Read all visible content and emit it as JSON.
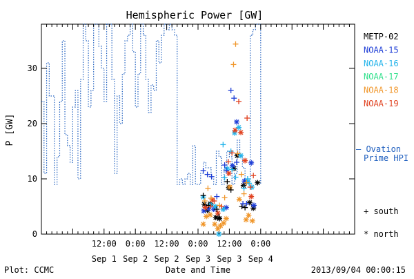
{
  "title": "Hemispheric Power [GW]",
  "footer": {
    "left": "Plot: CCMC",
    "right": "2013/09/04 00:00:15"
  },
  "legend": {
    "satellites": [
      {
        "name": "METP-02",
        "color": "#000000"
      },
      {
        "name": "NOAA-15",
        "color": "#1c3cd6"
      },
      {
        "name": "NOAA-16",
        "color": "#22b3ea"
      },
      {
        "name": "NOAA-17",
        "color": "#2ee08a"
      },
      {
        "name": "NOAA-18",
        "color": "#f0962a"
      },
      {
        "name": "NOAA-19",
        "color": "#e0401e"
      }
    ],
    "ovation_label_1": "— Ovation",
    "ovation_label_2": "Prime HPI",
    "ovation_color": "#1f5fbf",
    "south_label": "+ south",
    "north_label": "* north"
  },
  "chart_data": {
    "type": "scatter",
    "title": "Hemispheric Power [GW]",
    "xlabel": "Date and Time",
    "ylabel": "P [GW]",
    "xlim_hours": [
      0,
      60
    ],
    "ylim": [
      0,
      38
    ],
    "x_ticks": [
      {
        "hour": 12,
        "time": "12:00",
        "date": "Sep 1"
      },
      {
        "hour": 18,
        "time": "0:00",
        "date": "Sep 2"
      },
      {
        "hour": 24,
        "time": "12:00",
        "date": "Sep 2"
      },
      {
        "hour": 30,
        "time": "0:00",
        "date": "Sep 3"
      },
      {
        "hour": 36,
        "time": "12:00",
        "date": "Sep 3"
      },
      {
        "hour": 42,
        "time": "0:00",
        "date": "Sep 4"
      }
    ],
    "y_ticks": [
      0,
      10,
      20,
      30
    ],
    "ovation_hpi": {
      "name": "Ovation Prime HPI",
      "x": [
        0,
        0.5,
        1,
        1.5,
        2,
        2.5,
        3,
        3.5,
        4,
        4.5,
        5,
        5.5,
        6,
        6.5,
        7,
        7.5,
        8,
        8.5,
        9,
        9.5,
        10,
        10.5,
        11,
        11.5,
        12,
        12.5,
        13,
        13.5,
        14,
        14.5,
        15,
        15.5,
        16,
        16.5,
        17,
        17.5,
        18,
        18.5,
        19,
        19.5,
        20,
        20.5,
        21,
        21.5,
        22,
        22.5,
        23,
        23.5,
        24,
        24.5,
        25,
        25.5,
        26,
        26.5,
        27,
        27.5,
        28,
        28.5,
        29,
        29.5,
        30,
        30.5,
        31,
        31.5,
        32,
        32.5,
        33,
        33.5,
        34,
        34.5,
        35,
        35.5,
        36,
        36.5,
        37,
        37.5,
        38,
        38.5,
        39,
        39.5,
        40,
        40.5,
        41,
        41.5,
        42
      ],
      "y": [
        24,
        11,
        31,
        25,
        25,
        9,
        14,
        24,
        35,
        18,
        16,
        13,
        23,
        26,
        10,
        28,
        38,
        35,
        23,
        26,
        38,
        38,
        34,
        30,
        24,
        38,
        38,
        28,
        11,
        25,
        20,
        29,
        35,
        36,
        38,
        33,
        23,
        29,
        38,
        36,
        28,
        22,
        27,
        26,
        35,
        31,
        36,
        38,
        37,
        38,
        37,
        36,
        9,
        10,
        9,
        10,
        11,
        9,
        16,
        9,
        9,
        11,
        13,
        12,
        12,
        10,
        9,
        15,
        14,
        9,
        12,
        15,
        14,
        9,
        11,
        17,
        14,
        12,
        9,
        10,
        36,
        37,
        38,
        38,
        9
      ]
    },
    "south": [
      {
        "sat": "METP-02",
        "x": 31.0,
        "y": 7.0
      },
      {
        "sat": "METP-02",
        "x": 32.0,
        "y": 5.2
      },
      {
        "sat": "METP-02",
        "x": 33.6,
        "y": 4.5
      },
      {
        "sat": "METP-02",
        "x": 34.0,
        "y": 3.1
      },
      {
        "sat": "METP-02",
        "x": 35.6,
        "y": 9.5
      },
      {
        "sat": "METP-02",
        "x": 36.3,
        "y": 8.0
      },
      {
        "sat": "METP-02",
        "x": 38.4,
        "y": 5.0
      },
      {
        "sat": "METP-02",
        "x": 39.0,
        "y": 4.8
      },
      {
        "sat": "NOAA-15",
        "x": 31.0,
        "y": 11.5
      },
      {
        "sat": "NOAA-15",
        "x": 31.8,
        "y": 10.8
      },
      {
        "sat": "NOAA-15",
        "x": 32.6,
        "y": 10.4
      },
      {
        "sat": "NOAA-15",
        "x": 33.6,
        "y": 6.8
      },
      {
        "sat": "NOAA-15",
        "x": 35.1,
        "y": 12.5
      },
      {
        "sat": "NOAA-15",
        "x": 35.4,
        "y": 11.5
      },
      {
        "sat": "NOAA-15",
        "x": 36.3,
        "y": 26.0
      },
      {
        "sat": "NOAA-15",
        "x": 36.9,
        "y": 24.6
      },
      {
        "sat": "NOAA-15",
        "x": 37.4,
        "y": 13.0
      },
      {
        "sat": "NOAA-15",
        "x": 38.6,
        "y": 5.5
      },
      {
        "sat": "NOAA-15",
        "x": 39.3,
        "y": 5.5
      },
      {
        "sat": "NOAA-16",
        "x": 34.8,
        "y": 16.2
      },
      {
        "sat": "NOAA-16",
        "x": 35.1,
        "y": 10.2
      },
      {
        "sat": "NOAA-16",
        "x": 36.3,
        "y": 15.0
      },
      {
        "sat": "NOAA-16",
        "x": 36.5,
        "y": 11.7
      },
      {
        "sat": "NOAA-16",
        "x": 37.2,
        "y": 10.3
      },
      {
        "sat": "NOAA-16",
        "x": 38.8,
        "y": 8.3
      },
      {
        "sat": "NOAA-16",
        "x": 39.5,
        "y": 10.0
      },
      {
        "sat": "NOAA-16",
        "x": 39.8,
        "y": 9.2
      },
      {
        "sat": "NOAA-18",
        "x": 31.3,
        "y": 6.0
      },
      {
        "sat": "NOAA-18",
        "x": 31.9,
        "y": 8.3
      },
      {
        "sat": "NOAA-18",
        "x": 32.5,
        "y": 6.5
      },
      {
        "sat": "NOAA-18",
        "x": 34.1,
        "y": 5.2
      },
      {
        "sat": "NOAA-18",
        "x": 35.1,
        "y": 6.6
      },
      {
        "sat": "NOAA-18",
        "x": 36.8,
        "y": 30.7
      },
      {
        "sat": "NOAA-18",
        "x": 37.2,
        "y": 34.4
      },
      {
        "sat": "NOAA-18",
        "x": 37.6,
        "y": 14.6
      },
      {
        "sat": "NOAA-18",
        "x": 38.3,
        "y": 10.8
      },
      {
        "sat": "NOAA-18",
        "x": 38.8,
        "y": 7.3
      },
      {
        "sat": "NOAA-18",
        "x": 39.3,
        "y": 9.3
      },
      {
        "sat": "NOAA-19",
        "x": 32.4,
        "y": 5.0
      },
      {
        "sat": "NOAA-19",
        "x": 33.1,
        "y": 6.0
      },
      {
        "sat": "NOAA-19",
        "x": 34.5,
        "y": 5.0
      },
      {
        "sat": "NOAA-19",
        "x": 35.8,
        "y": 13.1
      },
      {
        "sat": "NOAA-19",
        "x": 36.5,
        "y": 14.7
      },
      {
        "sat": "NOAA-19",
        "x": 37.8,
        "y": 24.0
      },
      {
        "sat": "NOAA-19",
        "x": 39.4,
        "y": 21.0
      },
      {
        "sat": "NOAA-19",
        "x": 40.0,
        "y": 8.5
      },
      {
        "sat": "NOAA-19",
        "x": 40.6,
        "y": 10.6
      }
    ],
    "north": [
      {
        "sat": "METP-02",
        "x": 31.2,
        "y": 5.4
      },
      {
        "sat": "METP-02",
        "x": 31.8,
        "y": 4.3
      },
      {
        "sat": "METP-02",
        "x": 32.4,
        "y": 5.5
      },
      {
        "sat": "METP-02",
        "x": 33.4,
        "y": 3.0
      },
      {
        "sat": "METP-02",
        "x": 34.1,
        "y": 2.8
      },
      {
        "sat": "METP-02",
        "x": 35.9,
        "y": 8.4
      },
      {
        "sat": "METP-02",
        "x": 36.9,
        "y": 11.9
      },
      {
        "sat": "METP-02",
        "x": 37.5,
        "y": 14.2
      },
      {
        "sat": "METP-02",
        "x": 38.7,
        "y": 8.8
      },
      {
        "sat": "METP-02",
        "x": 39.9,
        "y": 5.7
      },
      {
        "sat": "METP-02",
        "x": 40.6,
        "y": 4.7
      },
      {
        "sat": "METP-02",
        "x": 41.4,
        "y": 9.3
      },
      {
        "sat": "NOAA-15",
        "x": 31.1,
        "y": 4.2
      },
      {
        "sat": "NOAA-15",
        "x": 32.0,
        "y": 4.6
      },
      {
        "sat": "NOAA-15",
        "x": 33.0,
        "y": 4.5
      },
      {
        "sat": "NOAA-15",
        "x": 35.4,
        "y": 4.8
      },
      {
        "sat": "NOAA-15",
        "x": 36.6,
        "y": 12.4
      },
      {
        "sat": "NOAA-15",
        "x": 37.4,
        "y": 20.3
      },
      {
        "sat": "NOAA-15",
        "x": 38.9,
        "y": 9.6
      },
      {
        "sat": "NOAA-15",
        "x": 40.2,
        "y": 12.9
      },
      {
        "sat": "NOAA-15",
        "x": 40.7,
        "y": 5.2
      },
      {
        "sat": "NOAA-16",
        "x": 31.0,
        "y": 6.7
      },
      {
        "sat": "NOAA-16",
        "x": 32.3,
        "y": 5.3
      },
      {
        "sat": "NOAA-16",
        "x": 33.3,
        "y": 5.0
      },
      {
        "sat": "NOAA-16",
        "x": 34.0,
        "y": 0.0
      },
      {
        "sat": "NOAA-16",
        "x": 34.8,
        "y": 4.5
      },
      {
        "sat": "NOAA-16",
        "x": 35.6,
        "y": 11.8
      },
      {
        "sat": "NOAA-16",
        "x": 37.0,
        "y": 18.3
      },
      {
        "sat": "NOAA-16",
        "x": 37.8,
        "y": 19.3
      },
      {
        "sat": "NOAA-16",
        "x": 38.2,
        "y": 14.2
      },
      {
        "sat": "NOAA-16",
        "x": 39.6,
        "y": 9.5
      },
      {
        "sat": "NOAA-16",
        "x": 40.3,
        "y": 8.5
      },
      {
        "sat": "NOAA-18",
        "x": 31.0,
        "y": 1.8
      },
      {
        "sat": "NOAA-18",
        "x": 31.6,
        "y": 3.2
      },
      {
        "sat": "NOAA-18",
        "x": 32.3,
        "y": 3.5
      },
      {
        "sat": "NOAA-18",
        "x": 33.2,
        "y": 1.8
      },
      {
        "sat": "NOAA-18",
        "x": 33.8,
        "y": 1.0
      },
      {
        "sat": "NOAA-18",
        "x": 34.3,
        "y": 1.5
      },
      {
        "sat": "NOAA-18",
        "x": 34.9,
        "y": 2.0
      },
      {
        "sat": "NOAA-18",
        "x": 35.4,
        "y": 2.8
      },
      {
        "sat": "NOAA-18",
        "x": 36.1,
        "y": 8.5
      },
      {
        "sat": "NOAA-18",
        "x": 37.9,
        "y": 6.3
      },
      {
        "sat": "NOAA-18",
        "x": 39.2,
        "y": 2.6
      },
      {
        "sat": "NOAA-18",
        "x": 39.7,
        "y": 3.4
      },
      {
        "sat": "NOAA-18",
        "x": 40.4,
        "y": 2.4
      },
      {
        "sat": "NOAA-19",
        "x": 31.4,
        "y": 4.8
      },
      {
        "sat": "NOAA-19",
        "x": 32.7,
        "y": 6.2
      },
      {
        "sat": "NOAA-19",
        "x": 33.8,
        "y": 3.8
      },
      {
        "sat": "NOAA-19",
        "x": 35.9,
        "y": 11.0
      },
      {
        "sat": "NOAA-19",
        "x": 37.1,
        "y": 18.8
      },
      {
        "sat": "NOAA-19",
        "x": 38.2,
        "y": 18.4
      },
      {
        "sat": "NOAA-19",
        "x": 39.0,
        "y": 13.3
      },
      {
        "sat": "NOAA-19",
        "x": 40.2,
        "y": 6.8
      }
    ]
  }
}
